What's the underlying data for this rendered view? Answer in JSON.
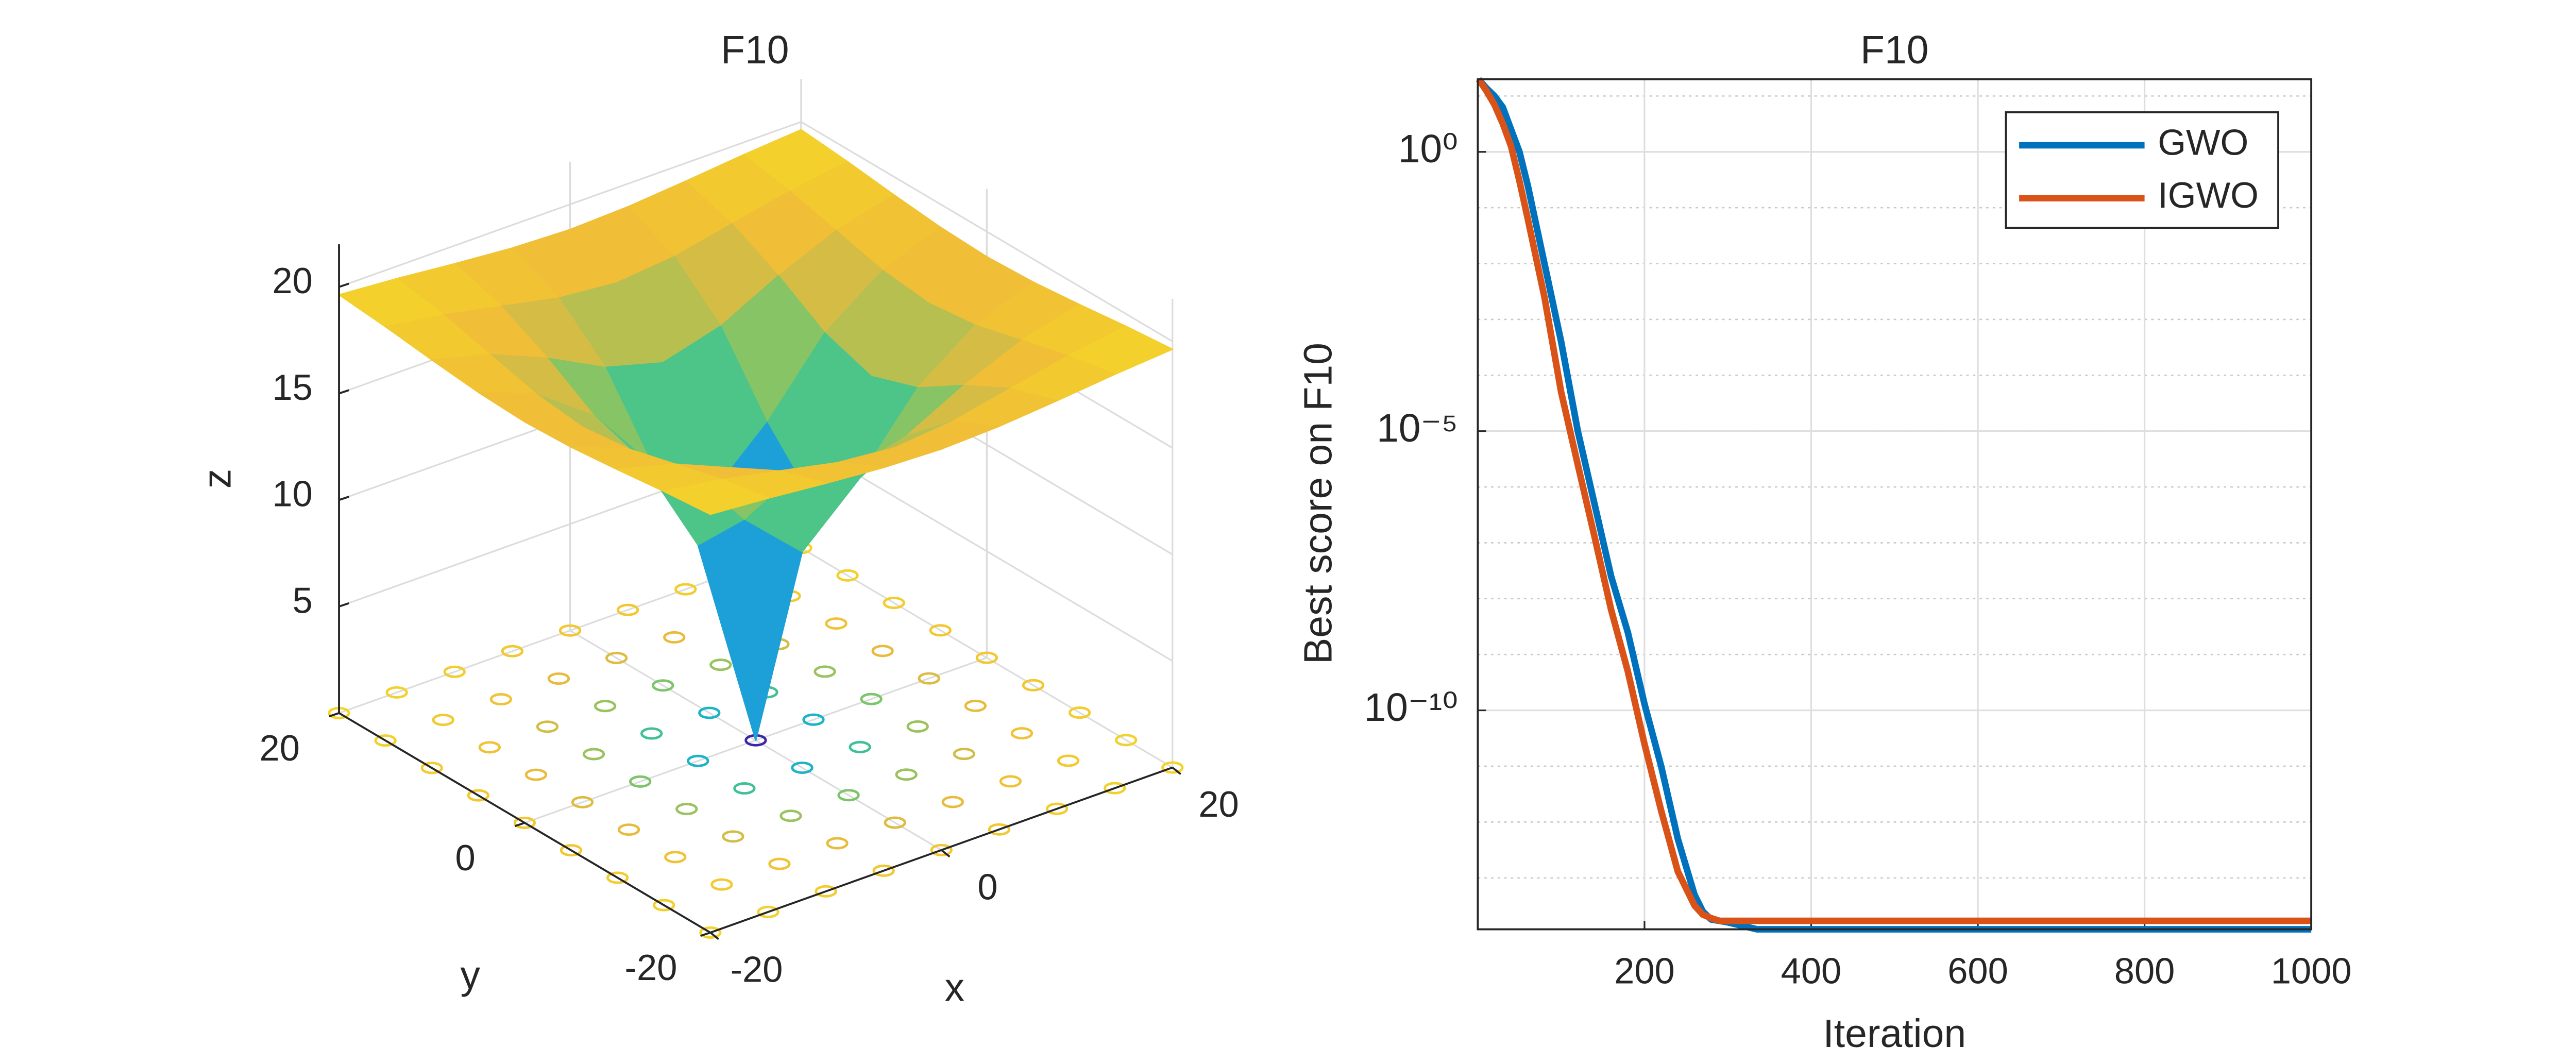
{
  "chart_data": [
    {
      "type": "surface",
      "title": "F10",
      "xlabel": "x",
      "ylabel": "y",
      "zlabel": "z",
      "x": [
        -20,
        -15,
        -10,
        -5,
        0,
        5,
        10,
        15,
        20
      ],
      "y": [
        -20,
        -15,
        -10,
        -5,
        0,
        5,
        10,
        15,
        20
      ],
      "z": [
        [
          19.63,
          19.42,
          19.15,
          18.92,
          18.82,
          18.92,
          19.15,
          19.42,
          19.63
        ],
        [
          19.42,
          19.0,
          18.44,
          17.86,
          17.6,
          17.86,
          18.44,
          19.0,
          19.42
        ],
        [
          19.15,
          18.44,
          17.29,
          15.89,
          15.14,
          15.89,
          17.29,
          18.44,
          19.15
        ],
        [
          18.92,
          17.86,
          15.89,
          12.64,
          10.14,
          12.64,
          15.89,
          17.86,
          18.92
        ],
        [
          18.82,
          17.6,
          15.14,
          10.14,
          0,
          10.14,
          15.14,
          17.6,
          18.82
        ],
        [
          18.92,
          17.86,
          15.89,
          12.64,
          10.14,
          12.64,
          15.89,
          17.86,
          18.92
        ],
        [
          19.15,
          18.44,
          17.29,
          15.89,
          15.14,
          15.89,
          17.29,
          18.44,
          19.15
        ],
        [
          19.42,
          19.0,
          18.44,
          17.86,
          17.6,
          17.86,
          18.44,
          19.0,
          19.42
        ],
        [
          19.63,
          19.42,
          19.15,
          18.92,
          18.82,
          18.92,
          19.15,
          19.42,
          19.63
        ]
      ],
      "xlim": [
        -20,
        20
      ],
      "ylim": [
        -20,
        20
      ],
      "zlim": [
        0,
        22
      ],
      "xticks": [
        -20,
        0,
        20
      ],
      "yticks": [
        -20,
        0,
        20
      ],
      "zticks": [
        5,
        10,
        15,
        20
      ],
      "colormap": "parula",
      "grid": true,
      "floor_contour": true
    },
    {
      "type": "line",
      "title": "F10",
      "xlabel": "Iteration",
      "ylabel": "Best score on F10",
      "series": [
        {
          "name": "GWO",
          "color": "#0072bd",
          "x": [
            1,
            10,
            20,
            30,
            40,
            50,
            60,
            80,
            100,
            120,
            140,
            160,
            180,
            200,
            220,
            240,
            260,
            270,
            280,
            300,
            335,
            1000
          ],
          "values": [
            20,
            14,
            10,
            6.3,
            2.5,
            1,
            0.25,
            0.01,
            0.0004,
            1e-05,
            5e-07,
            2.5e-08,
            2.5e-09,
            1.3e-10,
            1e-11,
            5e-13,
            5e-14,
            2.5e-14,
            1.8e-14,
            1.6e-14,
            1.2e-14,
            1.2e-14
          ]
        },
        {
          "name": "IGWO",
          "color": "#d95319",
          "x": [
            1,
            10,
            20,
            30,
            40,
            50,
            60,
            80,
            100,
            120,
            140,
            160,
            180,
            200,
            220,
            240,
            260,
            270,
            280,
            290,
            1000
          ],
          "values": [
            20,
            12.6,
            7,
            3.2,
            1.25,
            0.3,
            0.063,
            0.0025,
            5e-05,
            2.5e-06,
            1.3e-07,
            6.3e-09,
            5e-10,
            2.5e-11,
            1.6e-12,
            1.3e-13,
            3.2e-14,
            2.2e-14,
            1.9e-14,
            1.7e-14,
            1.7e-14
          ]
        }
      ],
      "xlim": [
        0,
        1000
      ],
      "xticks": [
        200,
        400,
        600,
        800,
        1000
      ],
      "ylim": [
        1.2e-14,
        20
      ],
      "log_y": true,
      "yticks": [
        {
          "value": 1,
          "label": "10⁰"
        },
        {
          "value": 1e-05,
          "label": "10⁻⁵"
        },
        {
          "value": 1e-10,
          "label": "10⁻¹⁰"
        }
      ],
      "grid": true,
      "minor_grid": true,
      "legend": "upper right"
    }
  ]
}
